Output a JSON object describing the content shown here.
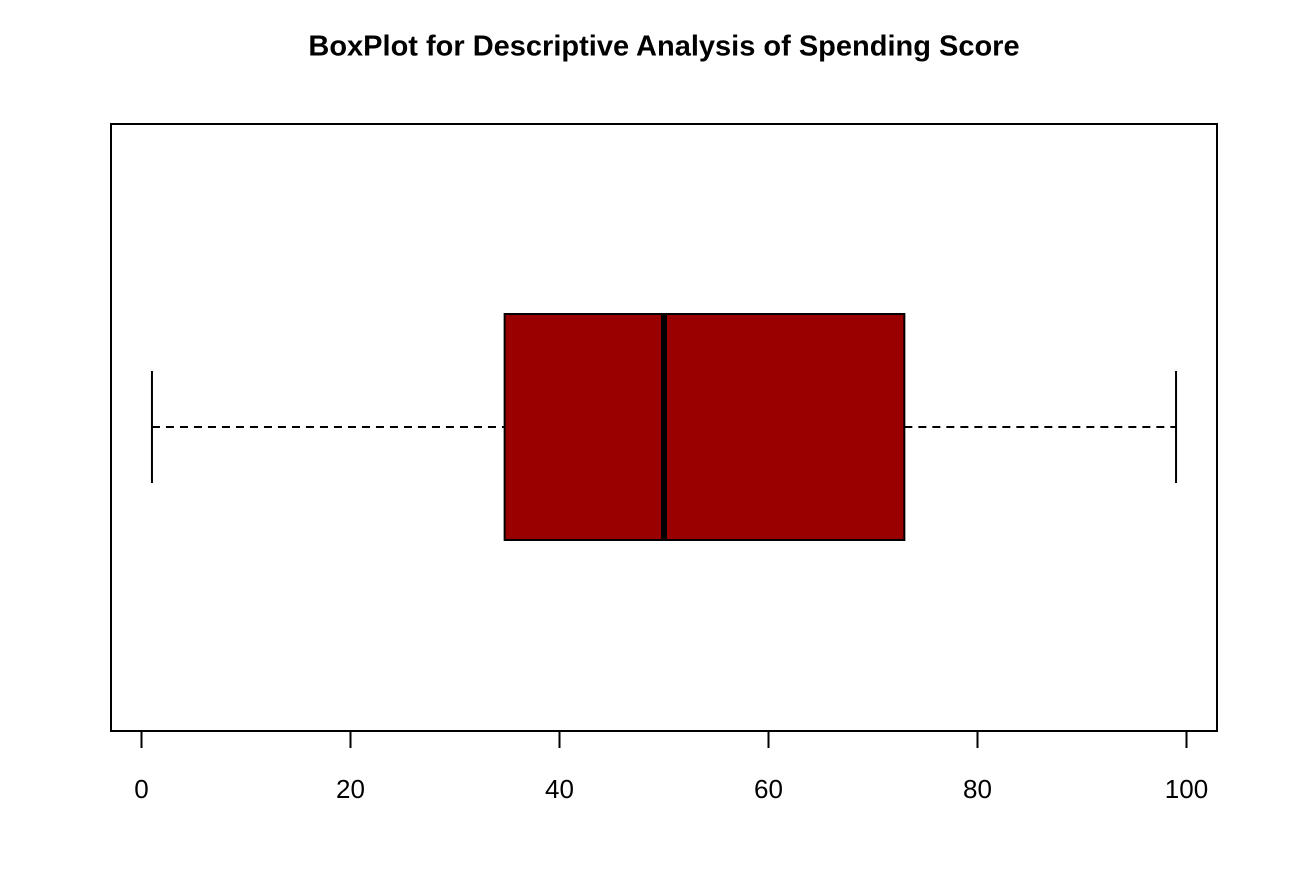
{
  "chart_data": {
    "type": "boxplot",
    "title": "BoxPlot for Descriptive Analysis of Spending Score",
    "min": 1,
    "q1": 34.75,
    "median": 50,
    "q3": 73,
    "max": 99,
    "color": "#990000",
    "xlim": [
      -2.92,
      102.92
    ],
    "xticks": [
      0,
      20,
      40,
      60,
      80,
      100
    ],
    "horizontal": true
  }
}
